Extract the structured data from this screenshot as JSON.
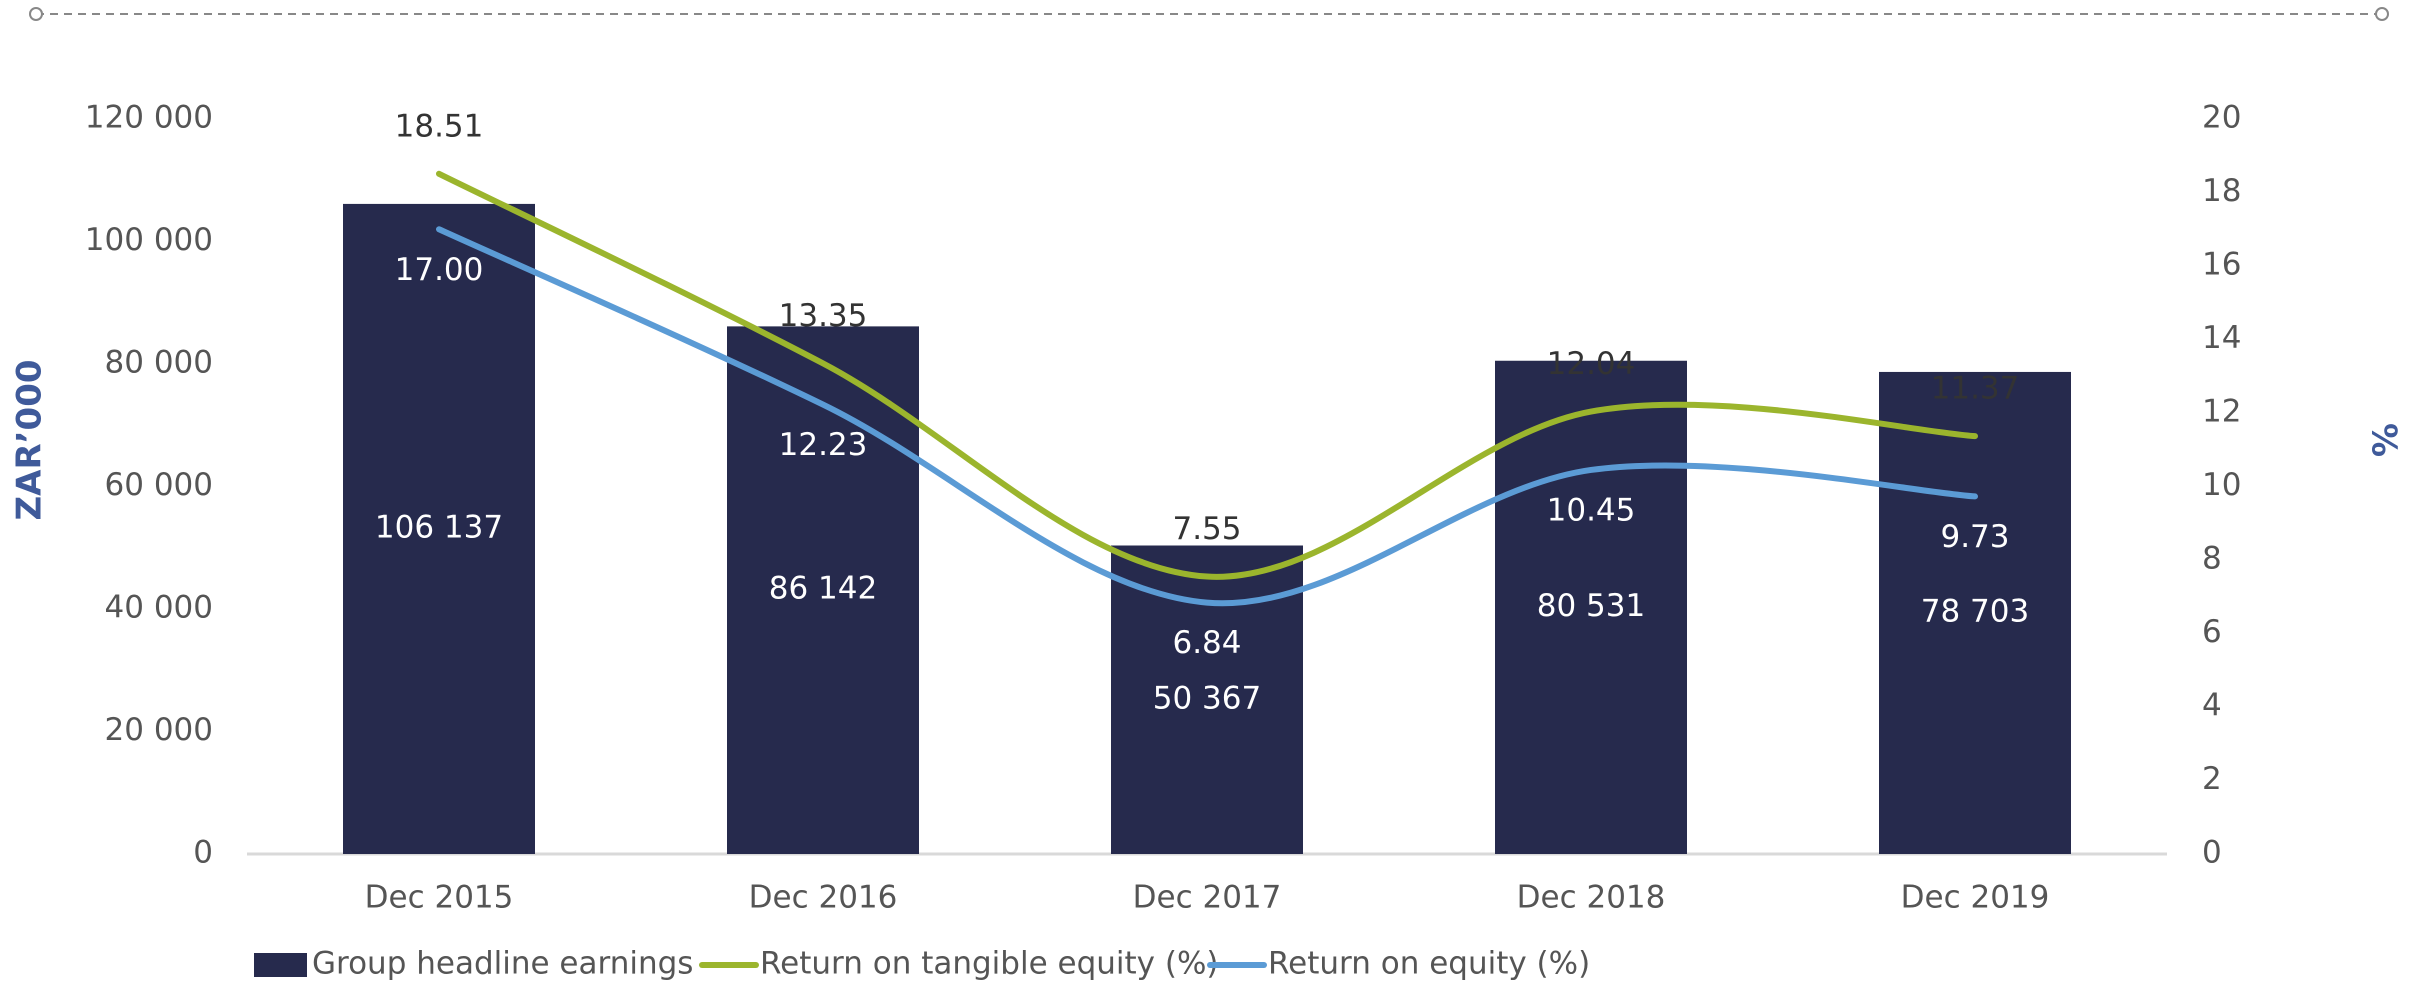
{
  "chart_data": {
    "type": "combo",
    "categories": [
      "Dec 2015",
      "Dec 2016",
      "Dec 2017",
      "Dec 2018",
      "Dec 2019"
    ],
    "series": [
      {
        "name": "Group headline earnings",
        "type": "bar",
        "color": "#262a4d",
        "axis": "y",
        "values": [
          106137,
          86142,
          50367,
          80531,
          78703
        ],
        "value_labels": [
          "106 137",
          "86 142",
          "50 367",
          "80 531",
          "78 703"
        ]
      },
      {
        "name": "Return on tangible equity (%)",
        "type": "line",
        "color": "#9bb52d",
        "axis": "y2",
        "values": [
          18.51,
          13.35,
          7.55,
          12.04,
          11.37
        ]
      },
      {
        "name": "Return on equity (%)",
        "type": "line",
        "color": "#5b9bd5",
        "axis": "y2",
        "values": [
          17.0,
          12.23,
          6.84,
          10.45,
          9.73
        ],
        "value_labels": [
          "17.00",
          "12.23",
          "6.84",
          "10.45",
          "9.73"
        ]
      }
    ],
    "ylabel": "ZAR’000",
    "y2label": "%",
    "ylim": [
      0,
      120000
    ],
    "yticks": [
      0,
      {
        "value": 20000,
        "label": "20 000"
      },
      {
        "value": 40000,
        "label": "40 000"
      },
      {
        "value": 60000,
        "label": "60 000"
      },
      {
        "value": 80000,
        "label": "80 000"
      },
      {
        "value": 100000,
        "label": "100 000"
      },
      {
        "value": 120000,
        "label": "120 000"
      }
    ],
    "y2lim": [
      0,
      20
    ],
    "y2ticks": [
      0,
      2,
      4,
      6,
      8,
      10,
      12,
      14,
      16,
      18,
      20
    ],
    "grid": false,
    "legend": "bottom"
  }
}
